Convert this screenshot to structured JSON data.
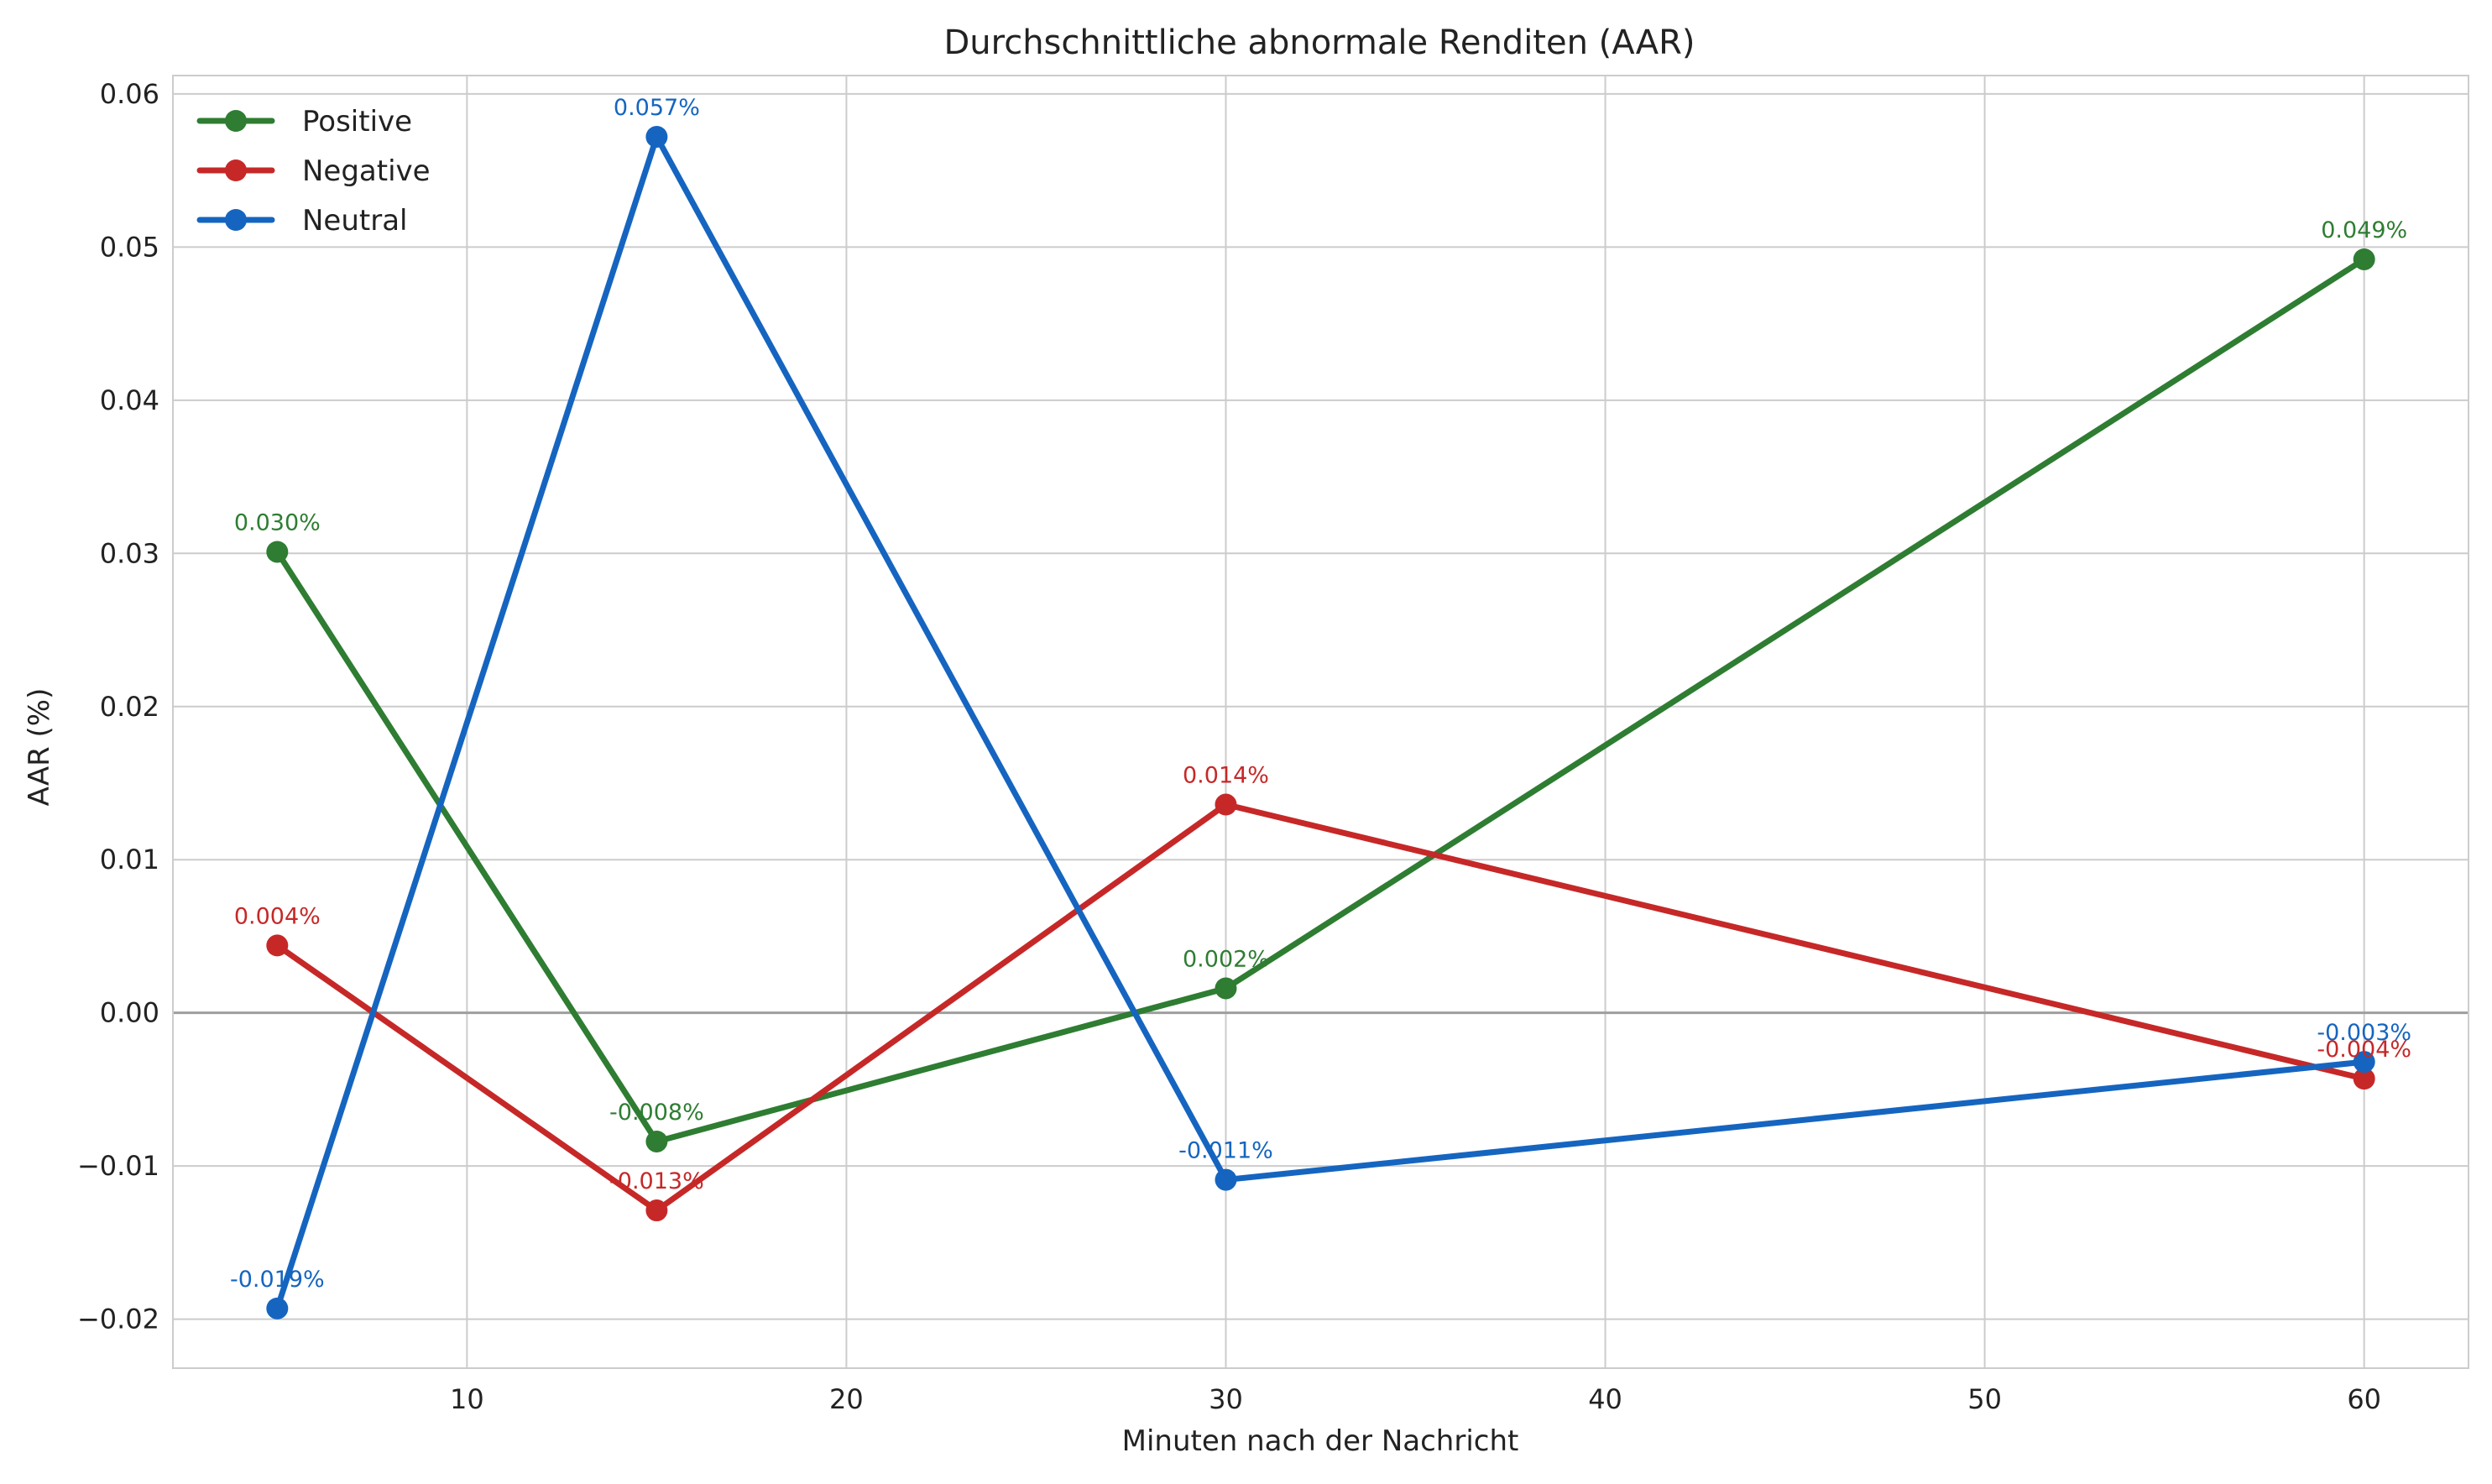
{
  "chart_data": {
    "type": "line",
    "title": "Durchschnittliche abnormale Renditen (AAR)",
    "xlabel": "Minuten nach der Nachricht",
    "ylabel": "AAR (%)",
    "x": [
      5,
      15,
      30,
      60
    ],
    "xlim": [
      2.25,
      62.75
    ],
    "ylim": [
      -0.0232,
      0.0612
    ],
    "xticks": [
      10,
      20,
      30,
      40,
      50,
      60
    ],
    "yticks": [
      -0.02,
      -0.01,
      0.0,
      0.01,
      0.02,
      0.03,
      0.04,
      0.05,
      0.06
    ],
    "ytick_labels": [
      "−0.02",
      "−0.01",
      "0.00",
      "0.01",
      "0.02",
      "0.03",
      "0.04",
      "0.05",
      "0.06"
    ],
    "grid": true,
    "legend_position": "top-left",
    "zero_line": true,
    "series": [
      {
        "name": "Positive",
        "color": "#2e7d32",
        "values": [
          0.0301,
          -0.0084,
          0.0016,
          0.0492
        ],
        "labels": [
          "0.030%",
          "-0.008%",
          "0.002%",
          "0.049%"
        ]
      },
      {
        "name": "Negative",
        "color": "#c62828",
        "values": [
          0.0044,
          -0.0129,
          0.0136,
          -0.0043
        ],
        "labels": [
          "0.004%",
          "-0.013%",
          "0.014%",
          "-0.004%"
        ]
      },
      {
        "name": "Neutral",
        "color": "#1565c0",
        "values": [
          -0.0193,
          0.0572,
          -0.0109,
          -0.0032
        ],
        "labels": [
          "-0.019%",
          "0.057%",
          "-0.011%",
          "-0.003%"
        ]
      }
    ]
  }
}
